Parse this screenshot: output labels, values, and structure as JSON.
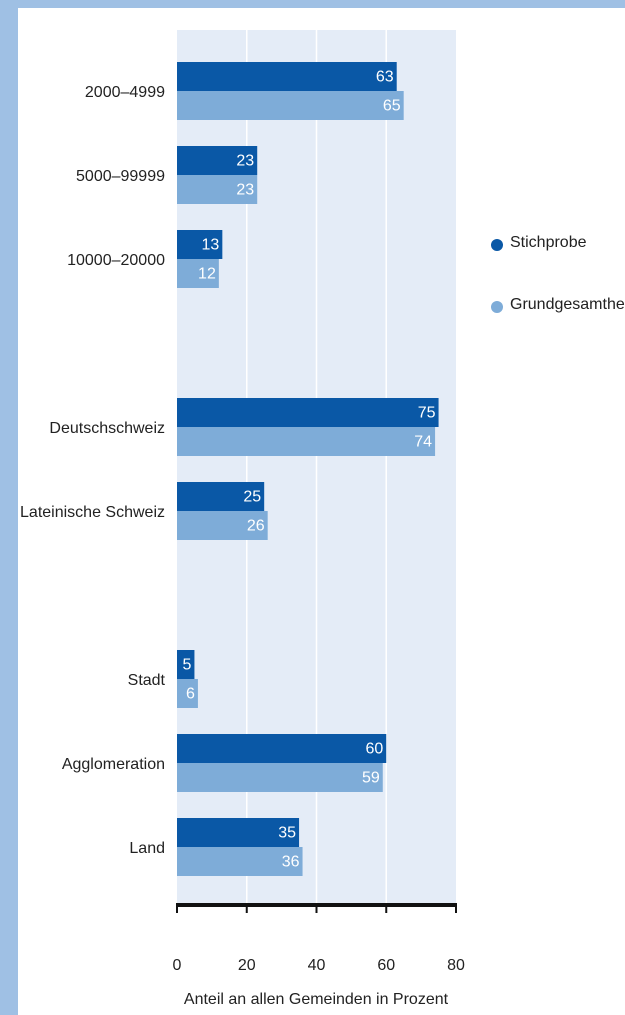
{
  "chart_data": {
    "type": "barh",
    "categories": [
      "2000–4999",
      "5000–99999",
      "10000–20000",
      null,
      "Deutschschweiz",
      "Lateinische Schweiz",
      null,
      "Stadt",
      "Agglomeration",
      "Land"
    ],
    "series": [
      {
        "name": "Stichprobe",
        "color": "#0a58a6",
        "values": [
          63,
          23,
          13,
          null,
          75,
          25,
          null,
          5,
          60,
          35
        ]
      },
      {
        "name": "Grundgesamtheit",
        "color": "#7eacd8",
        "values": [
          65,
          23,
          12,
          null,
          74,
          26,
          null,
          6,
          59,
          36
        ]
      }
    ],
    "xlim": [
      0,
      80
    ],
    "xticks": [
      0,
      20,
      40,
      60,
      80
    ],
    "grid": true,
    "x_label": "Anteil an allen Gemeinden in Prozent",
    "legend": "right"
  }
}
